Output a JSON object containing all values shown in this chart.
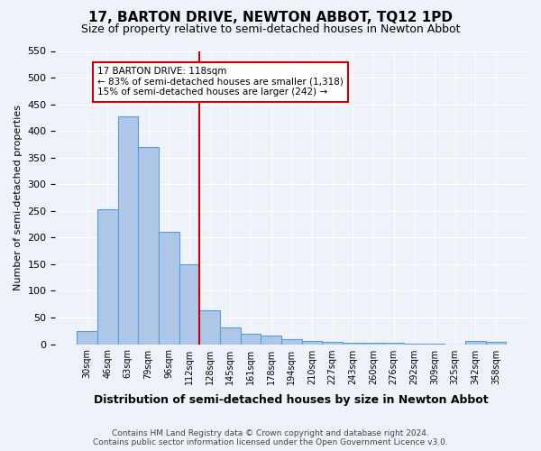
{
  "title": "17, BARTON DRIVE, NEWTON ABBOT, TQ12 1PD",
  "subtitle": "Size of property relative to semi-detached houses in Newton Abbot",
  "xlabel": "Distribution of semi-detached houses by size in Newton Abbot",
  "ylabel": "Number of semi-detached properties",
  "footer_line1": "Contains HM Land Registry data © Crown copyright and database right 2024.",
  "footer_line2": "Contains public sector information licensed under the Open Government Licence v3.0.",
  "bins": [
    "30sqm",
    "46sqm",
    "63sqm",
    "79sqm",
    "96sqm",
    "112sqm",
    "128sqm",
    "145sqm",
    "161sqm",
    "178sqm",
    "194sqm",
    "210sqm",
    "227sqm",
    "243sqm",
    "260sqm",
    "276sqm",
    "292sqm",
    "309sqm",
    "325sqm",
    "342sqm",
    "358sqm"
  ],
  "values": [
    25,
    253,
    428,
    369,
    210,
    150,
    63,
    32,
    20,
    16,
    9,
    6,
    5,
    3,
    3,
    2,
    1,
    1,
    0,
    6,
    4
  ],
  "bar_color": "#aec6e8",
  "bar_edge_color": "#5a9ed6",
  "property_bin_index": 5,
  "red_line_label": "17 BARTON DRIVE: 118sqm",
  "annotation_smaller": "← 83% of semi-detached houses are smaller (1,318)",
  "annotation_larger": "15% of semi-detached houses are larger (242) →",
  "annotation_box_color": "#ffffff",
  "annotation_box_edge": "#cc0000",
  "red_line_color": "#cc0000",
  "ylim": [
    0,
    550
  ],
  "yticks": [
    0,
    50,
    100,
    150,
    200,
    250,
    300,
    350,
    400,
    450,
    500,
    550
  ],
  "background_color": "#eef2f9",
  "plot_background": "#eef2f9"
}
